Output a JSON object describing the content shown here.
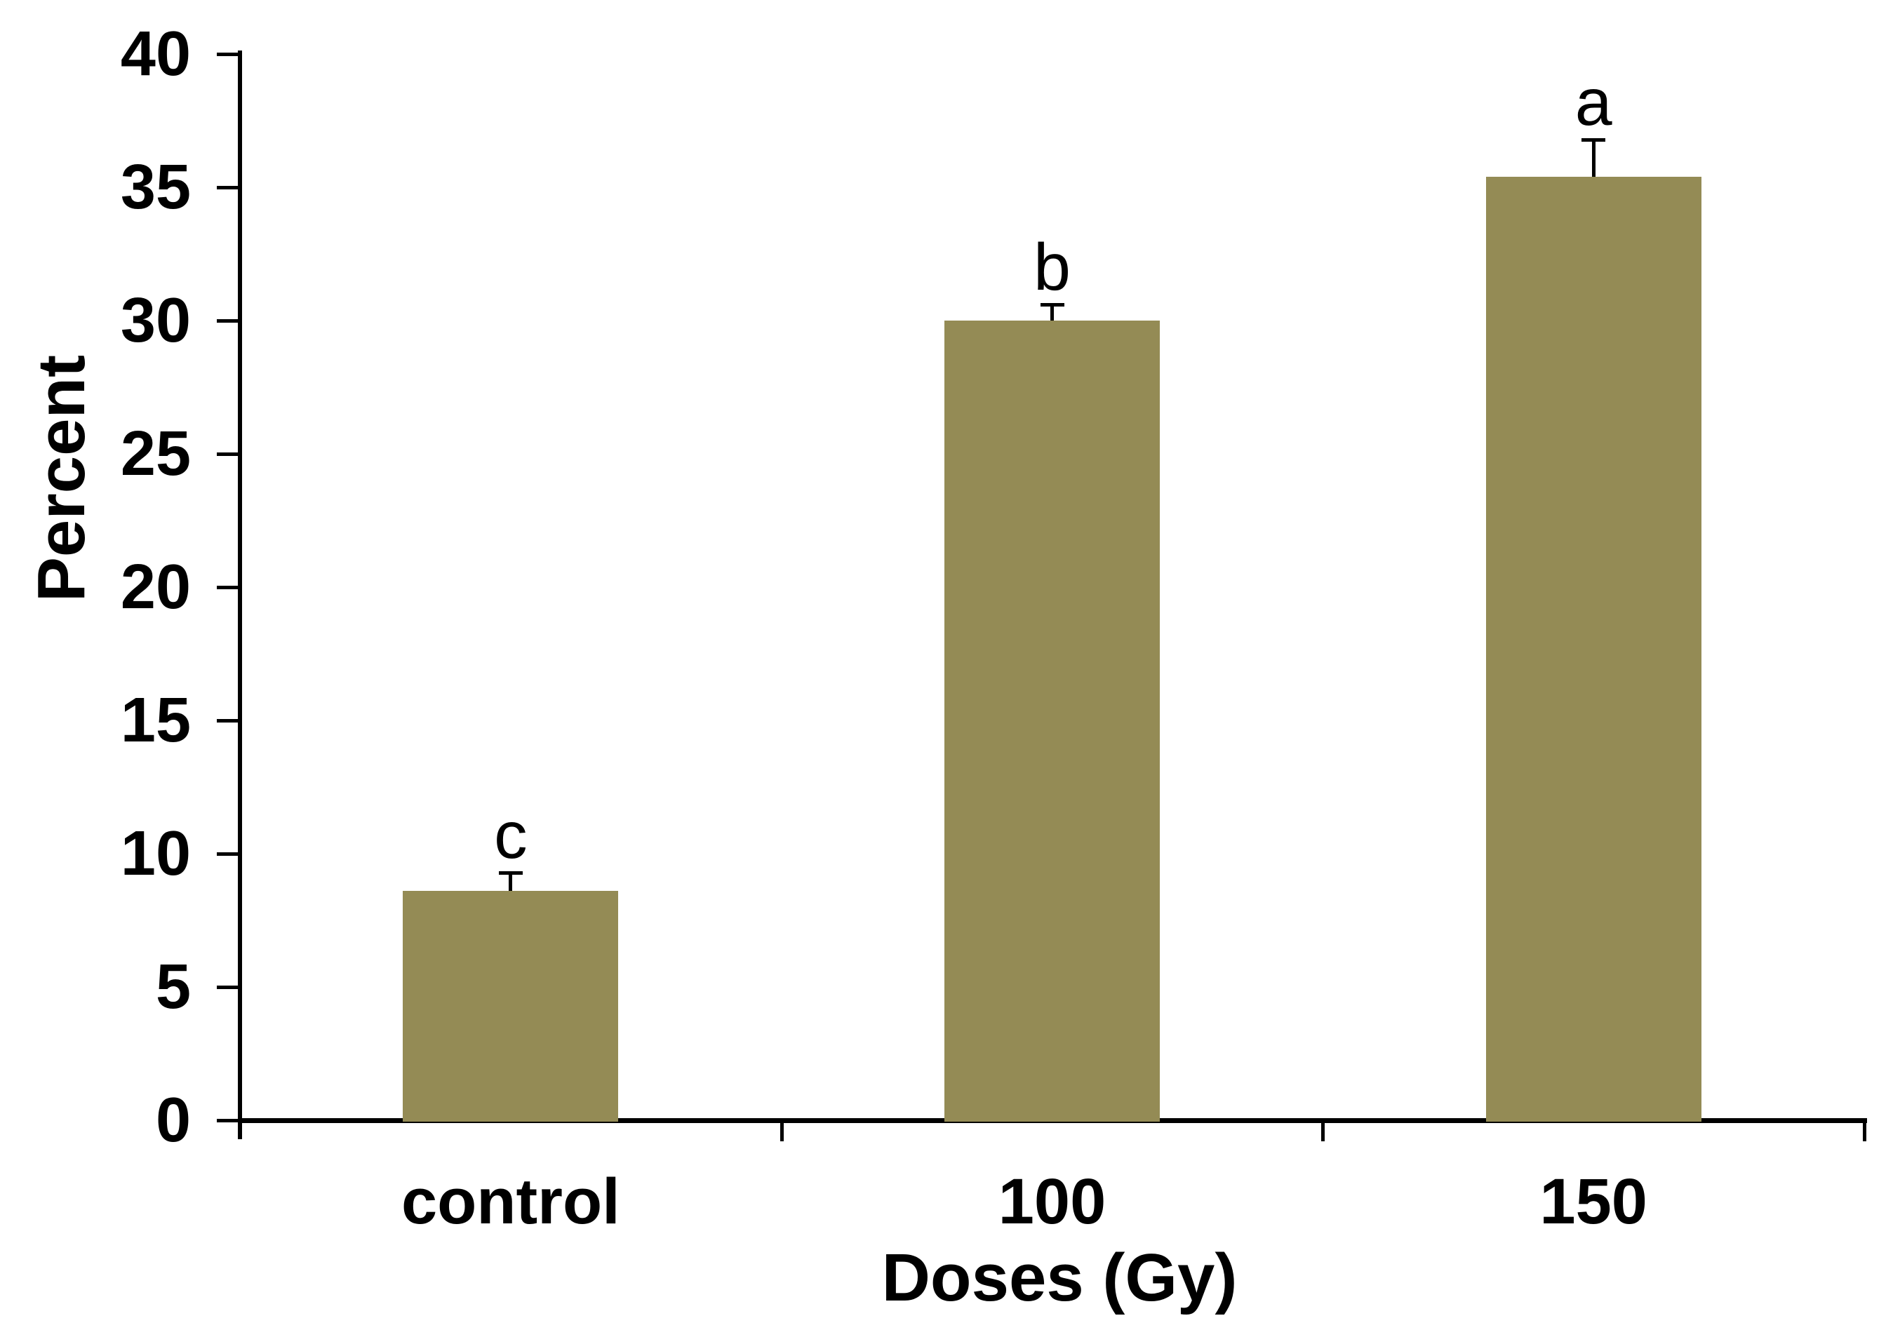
{
  "chart_data": {
    "type": "bar",
    "title": "",
    "categories": [
      "control",
      "100",
      "150"
    ],
    "values": [
      8.6,
      30,
      35.4
    ],
    "errors_upper": [
      0.7,
      0.6,
      1.4
    ],
    "bar_letters": [
      "c",
      "b",
      "a"
    ],
    "xlabel": "Doses (Gy)",
    "ylabel": "Percent",
    "ylim": [
      0,
      40
    ],
    "ytick_step": 5,
    "ytick_labels": [
      "0",
      "5",
      "10",
      "15",
      "20",
      "25",
      "30",
      "35",
      "40"
    ],
    "grid": false,
    "legend": "none",
    "error_bars": "upper-only",
    "bar_color": "#948B55",
    "axis_color": "#000000",
    "text_color": "#000000",
    "background": "#FFFFFF"
  }
}
